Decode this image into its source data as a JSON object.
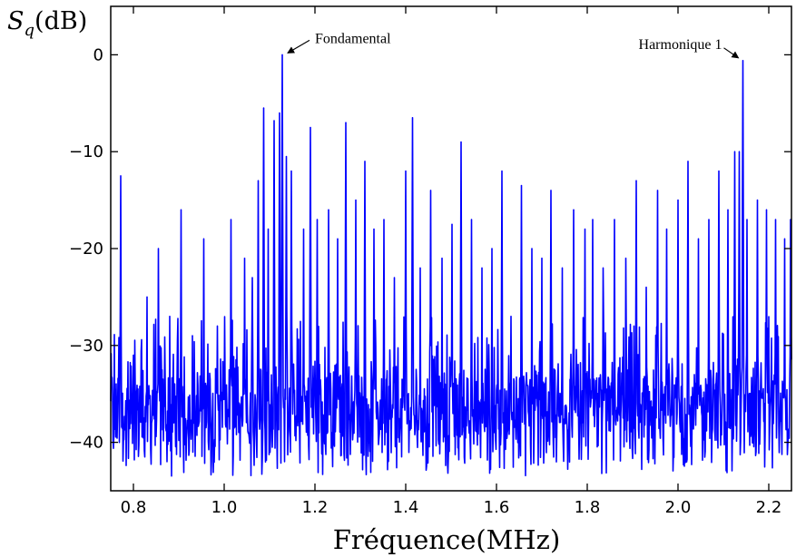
{
  "chart_data": {
    "type": "line",
    "ylabel_symbol": "S",
    "ylabel_subscript": "q",
    "ylabel_unit": "(dB)",
    "xlabel": "Fréquence(MHz)",
    "xlim": [
      0.75,
      2.25
    ],
    "ylim": [
      -45,
      5
    ],
    "x_ticks": [
      0.8,
      1.0,
      1.2,
      1.4,
      1.6,
      1.8,
      2.0,
      2.2
    ],
    "x_tick_labels": [
      "0.8",
      "1.0",
      "1.2",
      "1.4",
      "1.6",
      "1.8",
      "2.0",
      "2.2"
    ],
    "y_ticks": [
      0,
      -10,
      -20,
      -30,
      -40
    ],
    "y_tick_labels": [
      "0",
      "−10",
      "−20",
      "−30",
      "−40"
    ],
    "grid": false,
    "line_color": "#0000ff",
    "series": [
      {
        "peaks": [
          {
            "x": 0.772,
            "y": -12.5
          },
          {
            "x": 0.8,
            "y": -31
          },
          {
            "x": 0.83,
            "y": -25
          },
          {
            "x": 0.855,
            "y": -20
          },
          {
            "x": 0.88,
            "y": -27
          },
          {
            "x": 0.905,
            "y": -16
          },
          {
            "x": 0.93,
            "y": -29
          },
          {
            "x": 0.955,
            "y": -19
          },
          {
            "x": 0.985,
            "y": -28
          },
          {
            "x": 1.015,
            "y": -17
          },
          {
            "x": 1.045,
            "y": -21
          },
          {
            "x": 1.062,
            "y": -23
          },
          {
            "x": 1.075,
            "y": -13
          },
          {
            "x": 1.087,
            "y": -5.5
          },
          {
            "x": 1.097,
            "y": -18
          },
          {
            "x": 1.11,
            "y": -6.8
          },
          {
            "x": 1.122,
            "y": -6
          },
          {
            "x": 1.128,
            "y": 0
          },
          {
            "x": 1.137,
            "y": -10.5
          },
          {
            "x": 1.148,
            "y": -12
          },
          {
            "x": 1.175,
            "y": -18
          },
          {
            "x": 1.19,
            "y": -7.5
          },
          {
            "x": 1.205,
            "y": -17
          },
          {
            "x": 1.23,
            "y": -16
          },
          {
            "x": 1.25,
            "y": -19
          },
          {
            "x": 1.268,
            "y": -7
          },
          {
            "x": 1.29,
            "y": -15
          },
          {
            "x": 1.31,
            "y": -11
          },
          {
            "x": 1.33,
            "y": -18
          },
          {
            "x": 1.352,
            "y": -17
          },
          {
            "x": 1.375,
            "y": -23
          },
          {
            "x": 1.4,
            "y": -12
          },
          {
            "x": 1.415,
            "y": -6.5
          },
          {
            "x": 1.432,
            "y": -22
          },
          {
            "x": 1.455,
            "y": -14
          },
          {
            "x": 1.48,
            "y": -21
          },
          {
            "x": 1.502,
            "y": -17.5
          },
          {
            "x": 1.522,
            "y": -9
          },
          {
            "x": 1.545,
            "y": -17
          },
          {
            "x": 1.568,
            "y": -22
          },
          {
            "x": 1.59,
            "y": -20
          },
          {
            "x": 1.612,
            "y": -12
          },
          {
            "x": 1.632,
            "y": -27
          },
          {
            "x": 1.655,
            "y": -13.5
          },
          {
            "x": 1.678,
            "y": -20
          },
          {
            "x": 1.7,
            "y": -21
          },
          {
            "x": 1.72,
            "y": -14
          },
          {
            "x": 1.745,
            "y": -22
          },
          {
            "x": 1.77,
            "y": -16
          },
          {
            "x": 1.795,
            "y": -18
          },
          {
            "x": 1.812,
            "y": -17
          },
          {
            "x": 1.835,
            "y": -22
          },
          {
            "x": 1.86,
            "y": -17
          },
          {
            "x": 1.885,
            "y": -21
          },
          {
            "x": 1.908,
            "y": -13
          },
          {
            "x": 1.93,
            "y": -24
          },
          {
            "x": 1.955,
            "y": -14
          },
          {
            "x": 1.975,
            "y": -18
          },
          {
            "x": 2.0,
            "y": -15
          },
          {
            "x": 2.022,
            "y": -11
          },
          {
            "x": 2.045,
            "y": -19
          },
          {
            "x": 2.068,
            "y": -17
          },
          {
            "x": 2.09,
            "y": -12
          },
          {
            "x": 2.11,
            "y": -16
          },
          {
            "x": 2.125,
            "y": -10
          },
          {
            "x": 2.135,
            "y": -10
          },
          {
            "x": 2.143,
            "y": -0.6
          },
          {
            "x": 2.152,
            "y": -17
          },
          {
            "x": 2.175,
            "y": -15
          },
          {
            "x": 2.195,
            "y": -16
          },
          {
            "x": 2.215,
            "y": -17
          },
          {
            "x": 2.235,
            "y": -19
          },
          {
            "x": 2.248,
            "y": -17
          }
        ]
      }
    ],
    "annotations": [
      {
        "text": "Fondamental",
        "x": 1.128,
        "y": 0
      },
      {
        "text": "Harmonique 1",
        "x": 2.143,
        "y": -0.6
      }
    ]
  }
}
